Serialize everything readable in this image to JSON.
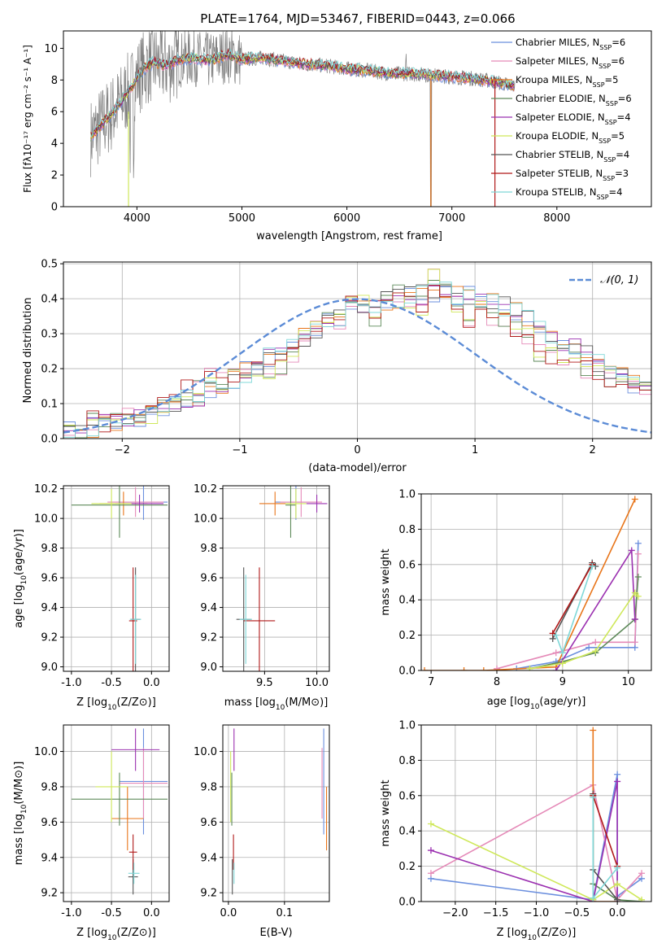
{
  "figure_title": "PLATE=1764, MJD=53467, FIBERID=0443, z=0.066",
  "colors": {
    "Chabrier MILES": "#6b8fde",
    "Salpeter MILES": "#e58ab8",
    "Kroupa MILES": "#e8751a",
    "Chabrier ELODIE": "#5e8a5a",
    "Salpeter ELODIE": "#9b30b0",
    "Kroupa ELODIE": "#cfe85a",
    "Chabrier STELIB": "#555555",
    "Salpeter STELIB": "#b01818",
    "Kroupa STELIB": "#7fd8d8",
    "data": "#808080",
    "gauss": "#5b8bd6"
  },
  "chart_data": [
    {
      "id": "spectrum",
      "type": "line",
      "title": "PLATE=1764, MJD=53467, FIBERID=0443, z=0.066",
      "xlabel": "wavelength [Angstrom, rest frame]",
      "ylabel": "Flux [fλ10⁻¹⁷ erg cm⁻² s⁻¹ A⁻¹]",
      "xlim": [
        3300,
        8900
      ],
      "ylim": [
        0,
        11.1
      ],
      "xticks": [
        4000,
        5000,
        6000,
        7000,
        8000
      ],
      "yticks": [
        0,
        2,
        4,
        6,
        8,
        10
      ],
      "grid": false,
      "legend_position": "right",
      "legend": [
        {
          "series": "Chabrier MILES",
          "pre": "Chabrier MILES, N",
          "sub": "SSP",
          "post": "=6"
        },
        {
          "series": "Salpeter MILES",
          "pre": "Salpeter MILES, N",
          "sub": "SSP",
          "post": "=6"
        },
        {
          "series": "Kroupa MILES",
          "pre": "Kroupa MILES, N",
          "sub": "SSP",
          "post": "=5"
        },
        {
          "series": "Chabrier ELODIE",
          "pre": "Chabrier ELODIE, N",
          "sub": "SSP",
          "post": "=6"
        },
        {
          "series": "Salpeter ELODIE",
          "pre": "Salpeter ELODIE, N",
          "sub": "SSP",
          "post": "=4"
        },
        {
          "series": "Kroupa ELODIE",
          "pre": "Kroupa ELODIE, N",
          "sub": "SSP",
          "post": "=5"
        },
        {
          "series": "Chabrier STELIB",
          "pre": "Chabrier STELIB, N",
          "sub": "SSP",
          "post": "=4"
        },
        {
          "series": "Salpeter STELIB",
          "pre": "Salpeter STELIB, N",
          "sub": "SSP",
          "post": "=3"
        },
        {
          "series": "Kroupa STELIB",
          "pre": "Kroupa STELIB, N",
          "sub": "SSP",
          "post": "=4"
        }
      ],
      "continuum": [
        [
          3550,
          4.3
        ],
        [
          3650,
          5.1
        ],
        [
          3750,
          5.8
        ],
        [
          3850,
          6.6
        ],
        [
          3950,
          7.6
        ],
        [
          4050,
          8.6
        ],
        [
          4150,
          9.1
        ],
        [
          4300,
          8.9
        ],
        [
          4400,
          9.3
        ],
        [
          4550,
          9.4
        ],
        [
          4700,
          9.2
        ],
        [
          4850,
          9.6
        ],
        [
          5000,
          9.3
        ],
        [
          5200,
          9.4
        ],
        [
          5400,
          9.2
        ],
        [
          5600,
          9.0
        ],
        [
          5800,
          8.9
        ],
        [
          6000,
          8.7
        ],
        [
          6200,
          8.6
        ],
        [
          6400,
          8.4
        ],
        [
          6600,
          8.4
        ],
        [
          6800,
          8.3
        ],
        [
          7000,
          8.2
        ],
        [
          7200,
          8.1
        ],
        [
          7400,
          7.9
        ],
        [
          7600,
          7.6
        ]
      ],
      "data_noise_amplitude": 1.4
    },
    {
      "id": "residuals",
      "type": "bar",
      "xlabel": "(data-model)/error",
      "ylabel": "Normed distribution",
      "xlim": [
        -2.5,
        2.5
      ],
      "ylim": [
        0,
        0.505
      ],
      "xticks": [
        -2,
        -1,
        0,
        1,
        2
      ],
      "yticks": [
        0.0,
        0.1,
        0.2,
        0.3,
        0.4,
        0.5
      ],
      "grid": true,
      "legend_position": "top-right",
      "gauss_label": "𝒩(0, 1)",
      "bin_width": 0.1,
      "bin_start": -2.5,
      "base": [
        0.02,
        0.025,
        0.03,
        0.04,
        0.05,
        0.05,
        0.06,
        0.07,
        0.08,
        0.1,
        0.11,
        0.12,
        0.14,
        0.15,
        0.17,
        0.19,
        0.21,
        0.23,
        0.24,
        0.26,
        0.29,
        0.31,
        0.33,
        0.35,
        0.37,
        0.38,
        0.39,
        0.39,
        0.4,
        0.41,
        0.41,
        0.42,
        0.42,
        0.41,
        0.41,
        0.4,
        0.4,
        0.38,
        0.36,
        0.35,
        0.33,
        0.3,
        0.28,
        0.26,
        0.24,
        0.22,
        0.2,
        0.18,
        0.16,
        0.15,
        0.13,
        0.11,
        0.1,
        0.09,
        0.08,
        0.07,
        0.06,
        0.05,
        0.04,
        0.035,
        0.03,
        0.03,
        0.025,
        0.02,
        0.02,
        0.015,
        0.015,
        0.015,
        0.01,
        0.01
      ],
      "base_alt": [
        0.02,
        0.03,
        0.05,
        0.04,
        0.05,
        0.06,
        0.06,
        0.07,
        0.09,
        0.1,
        0.14,
        0.15,
        0.18,
        0.16,
        0.19,
        0.2,
        0.19,
        0.19,
        0.21,
        0.24,
        0.3,
        0.32,
        0.34,
        0.34,
        0.38,
        0.38,
        0.35,
        0.38,
        0.41,
        0.4,
        0.38,
        0.46,
        0.42,
        0.38,
        0.34,
        0.37,
        0.34,
        0.33,
        0.32,
        0.3,
        0.25,
        0.23,
        0.24,
        0.22,
        0.2,
        0.19,
        0.17,
        0.16,
        0.15,
        0.13,
        0.11,
        0.1,
        0.09,
        0.07,
        0.06,
        0.05,
        0.05,
        0.04,
        0.04,
        0.03,
        0.03,
        0.04,
        0.03,
        0.03,
        0.02,
        0.03,
        0.02,
        0.02,
        0.02,
        0.03
      ]
    },
    {
      "id": "age_vs_Z",
      "type": "scatter",
      "xlabel_pre": "Z [log",
      "xlabel_sub": "10",
      "xlabel_post": "(Z/Z⊙)]",
      "ylabel_pre": "age  [log",
      "ylabel_sub": "10",
      "ylabel_post": "(age/yr)]",
      "xlim": [
        -1.1,
        0.22
      ],
      "ylim": [
        8.97,
        10.22
      ],
      "xticks": [
        -1.0,
        -0.5,
        0.0
      ],
      "yticks": [
        9.0,
        9.2,
        9.4,
        9.6,
        9.8,
        10.0,
        10.2
      ],
      "grid": true,
      "points": [
        {
          "series": "Chabrier MILES",
          "x": -0.1,
          "y": 10.11,
          "xerr": 0.3,
          "yerr": 0.12
        },
        {
          "series": "Salpeter MILES",
          "x": -0.2,
          "y": 10.11,
          "xerr": 0.35,
          "yerr": 0.1
        },
        {
          "series": "Kroupa MILES",
          "x": -0.35,
          "y": 10.1,
          "xerr": 0.3,
          "yerr": 0.08
        },
        {
          "series": "Chabrier ELODIE",
          "x": -0.4,
          "y": 10.09,
          "xerr": 0.6,
          "yerr": 0.22
        },
        {
          "series": "Salpeter ELODIE",
          "x": -0.15,
          "y": 10.1,
          "xerr": 0.3,
          "yerr": 0.06
        },
        {
          "series": "Kroupa ELODIE",
          "x": -0.5,
          "y": 10.1,
          "xerr": 0.25,
          "yerr": 0.1
        },
        {
          "series": "Chabrier STELIB",
          "x": -0.2,
          "y": 9.32,
          "xerr": 0.06,
          "yerr": 0.35
        },
        {
          "series": "Salpeter STELIB",
          "x": -0.23,
          "y": 9.31,
          "xerr": 0.05,
          "yerr": 0.36
        },
        {
          "series": "Kroupa STELIB",
          "x": -0.2,
          "y": 9.32,
          "xerr": 0.07,
          "yerr": 0.3
        }
      ]
    },
    {
      "id": "age_vs_mass",
      "type": "scatter",
      "xlabel_pre": "mass [log",
      "xlabel_sub": "10",
      "xlabel_post": "(M/M⊙)]",
      "ylabel_pre": "",
      "ylabel_sub": "",
      "ylabel_post": "",
      "xlim": [
        9.1,
        10.12
      ],
      "ylim": [
        8.97,
        10.22
      ],
      "xticks": [
        9.5,
        10.0
      ],
      "yticks": [
        9.0,
        9.2,
        9.4,
        9.6,
        9.8,
        10.0,
        10.2
      ],
      "grid": true,
      "points": [
        {
          "series": "Chabrier MILES",
          "x": 9.8,
          "y": 10.11,
          "xerr": 0.2,
          "yerr": 0.12
        },
        {
          "series": "Salpeter MILES",
          "x": 9.85,
          "y": 10.11,
          "xerr": 0.2,
          "yerr": 0.1
        },
        {
          "series": "Kroupa MILES",
          "x": 9.6,
          "y": 10.1,
          "xerr": 0.15,
          "yerr": 0.08
        },
        {
          "series": "Chabrier ELODIE",
          "x": 9.75,
          "y": 10.09,
          "xerr": 0.05,
          "yerr": 0.22
        },
        {
          "series": "Salpeter ELODIE",
          "x": 10.0,
          "y": 10.1,
          "xerr": 0.1,
          "yerr": 0.06
        },
        {
          "series": "Kroupa ELODIE",
          "x": 9.8,
          "y": 10.1,
          "xerr": 0.1,
          "yerr": 0.1
        },
        {
          "series": "Chabrier STELIB",
          "x": 9.3,
          "y": 9.32,
          "xerr": 0.07,
          "yerr": 0.35
        },
        {
          "series": "Salpeter STELIB",
          "x": 9.45,
          "y": 9.31,
          "xerr": 0.15,
          "yerr": 0.36
        },
        {
          "series": "Kroupa STELIB",
          "x": 9.32,
          "y": 9.32,
          "xerr": 0.06,
          "yerr": 0.3
        }
      ]
    },
    {
      "id": "mass_weight_vs_age",
      "type": "line",
      "xlabel_pre": "age  [log",
      "xlabel_sub": "10",
      "xlabel_post": "(age/yr)]",
      "ylabel": "mass weight",
      "xlim": [
        6.85,
        10.35
      ],
      "ylim": [
        0,
        1.0
      ],
      "xticks": [
        7,
        8,
        9,
        10
      ],
      "yticks": [
        0.0,
        0.2,
        0.4,
        0.6,
        0.8,
        1.0
      ],
      "grid": true,
      "series": [
        {
          "name": "Chabrier MILES",
          "x": [
            8.3,
            8.9,
            9.4,
            10.1,
            10.15
          ],
          "y": [
            0.01,
            0.05,
            0.13,
            0.13,
            0.72
          ]
        },
        {
          "name": "Salpeter MILES",
          "x": [
            8.0,
            8.9,
            9.5,
            10.1,
            10.15
          ],
          "y": [
            0.01,
            0.1,
            0.16,
            0.16,
            0.66
          ]
        },
        {
          "name": "Kroupa MILES",
          "x": [
            6.9,
            7.5,
            7.8,
            8.9,
            10.1
          ],
          "y": [
            0.0,
            0.0,
            0.0,
            0.02,
            0.97
          ]
        },
        {
          "name": "Chabrier ELODIE",
          "x": [
            8.5,
            9.0,
            9.5,
            10.1,
            10.15
          ],
          "y": [
            0.01,
            0.05,
            0.1,
            0.29,
            0.53
          ]
        },
        {
          "name": "Salpeter ELODIE",
          "x": [
            8.9,
            10.05,
            10.1
          ],
          "y": [
            0.0,
            0.68,
            0.29
          ]
        },
        {
          "name": "Kroupa ELODIE",
          "x": [
            8.5,
            9.0,
            9.5,
            10.1,
            10.15
          ],
          "y": [
            0.01,
            0.04,
            0.11,
            0.44,
            0.42
          ]
        },
        {
          "name": "Chabrier STELIB",
          "x": [
            8.85,
            9.45,
            9.5
          ],
          "y": [
            0.18,
            0.61,
            0.59
          ]
        },
        {
          "name": "Salpeter STELIB",
          "x": [
            8.85,
            9.45
          ],
          "y": [
            0.21,
            0.6
          ]
        },
        {
          "name": "Kroupa STELIB",
          "x": [
            8.9,
            9.0,
            9.45
          ],
          "y": [
            0.2,
            0.1,
            0.59
          ]
        }
      ]
    },
    {
      "id": "mass_vs_Z",
      "type": "scatter",
      "xlabel_pre": "Z [log",
      "xlabel_sub": "10",
      "xlabel_post": "(Z/Z⊙)]",
      "ylabel_pre": "mass [log",
      "ylabel_sub": "10",
      "ylabel_post": "(M/M⊙)]",
      "xlim": [
        -1.1,
        0.22
      ],
      "ylim": [
        9.15,
        10.15
      ],
      "xticks": [
        -1.0,
        -0.5,
        0.0
      ],
      "yticks": [
        9.2,
        9.4,
        9.6,
        9.8,
        10.0
      ],
      "grid": true,
      "points": [
        {
          "series": "Chabrier MILES",
          "x": -0.1,
          "y": 9.83,
          "xerr": 0.3,
          "yerr": 0.3
        },
        {
          "series": "Salpeter MILES",
          "x": -0.1,
          "y": 9.82,
          "xerr": 0.3,
          "yerr": 0.2
        },
        {
          "series": "Kroupa MILES",
          "x": -0.3,
          "y": 9.62,
          "xerr": 0.2,
          "yerr": 0.18
        },
        {
          "series": "Chabrier ELODIE",
          "x": -0.4,
          "y": 9.73,
          "xerr": 0.6,
          "yerr": 0.15
        },
        {
          "series": "Salpeter ELODIE",
          "x": -0.2,
          "y": 10.01,
          "xerr": 0.3,
          "yerr": 0.12
        },
        {
          "series": "Kroupa ELODIE",
          "x": -0.5,
          "y": 9.8,
          "xerr": 0.2,
          "yerr": 0.2
        },
        {
          "series": "Chabrier STELIB",
          "x": -0.23,
          "y": 9.29,
          "xerr": 0.06,
          "yerr": 0.1
        },
        {
          "series": "Salpeter STELIB",
          "x": -0.23,
          "y": 9.43,
          "xerr": 0.05,
          "yerr": 0.1
        },
        {
          "series": "Kroupa STELIB",
          "x": -0.22,
          "y": 9.31,
          "xerr": 0.07,
          "yerr": 0.06
        }
      ]
    },
    {
      "id": "ebv",
      "type": "scatter",
      "xlabel": "E(B-V)",
      "xlim": [
        -0.01,
        0.18
      ],
      "ylim": [
        9.15,
        10.15
      ],
      "xticks": [
        0.0,
        0.1
      ],
      "yticks": [
        9.2,
        9.4,
        9.6,
        9.8,
        10.0
      ],
      "grid": true,
      "points": [
        {
          "series": "Chabrier MILES",
          "x": 0.17,
          "y": 9.83,
          "xerr": 0,
          "yerr": 0.3
        },
        {
          "series": "Salpeter MILES",
          "x": 0.167,
          "y": 9.82,
          "xerr": 0,
          "yerr": 0.2
        },
        {
          "series": "Kroupa MILES",
          "x": 0.175,
          "y": 9.62,
          "xerr": 0,
          "yerr": 0.18
        },
        {
          "series": "Chabrier ELODIE",
          "x": 0.006,
          "y": 9.73,
          "xerr": 0,
          "yerr": 0.15
        },
        {
          "series": "Salpeter ELODIE",
          "x": 0.01,
          "y": 10.01,
          "xerr": 0,
          "yerr": 0.12
        },
        {
          "series": "Kroupa ELODIE",
          "x": 0.004,
          "y": 9.8,
          "xerr": 0,
          "yerr": 0.2
        },
        {
          "series": "Chabrier STELIB",
          "x": 0.007,
          "y": 9.29,
          "xerr": 0,
          "yerr": 0.1
        },
        {
          "series": "Salpeter STELIB",
          "x": 0.009,
          "y": 9.43,
          "xerr": 0,
          "yerr": 0.1
        },
        {
          "series": "Kroupa STELIB",
          "x": 0.01,
          "y": 9.31,
          "xerr": 0,
          "yerr": 0.06
        }
      ]
    },
    {
      "id": "mass_weight_vs_Z",
      "type": "line",
      "xlabel_pre": "Z [log",
      "xlabel_sub": "10",
      "xlabel_post": "(Z/Z⊙)]",
      "ylabel": "mass weight",
      "xlim": [
        -2.42,
        0.42
      ],
      "ylim": [
        0,
        1.0
      ],
      "xticks": [
        -2.0,
        -1.5,
        -1.0,
        -0.5,
        0.0
      ],
      "yticks": [
        0.0,
        0.2,
        0.4,
        0.6,
        0.8,
        1.0
      ],
      "grid": true,
      "series": [
        {
          "name": "Chabrier MILES",
          "x": [
            -2.3,
            -0.3,
            0.0,
            0.0,
            0.3
          ],
          "y": [
            0.13,
            0.01,
            0.72,
            0.03,
            0.13
          ]
        },
        {
          "name": "Salpeter MILES",
          "x": [
            -2.3,
            -0.3,
            0.0,
            0.3
          ],
          "y": [
            0.16,
            0.66,
            0.01,
            0.16
          ]
        },
        {
          "name": "Kroupa MILES",
          "x": [
            -0.3,
            -0.3,
            0.0
          ],
          "y": [
            0.97,
            0.0,
            0.0
          ]
        },
        {
          "name": "Chabrier ELODIE",
          "x": [
            -0.3,
            -0.3,
            0.0,
            0.3
          ],
          "y": [
            0.6,
            0.1,
            0.01,
            0.0
          ]
        },
        {
          "name": "Salpeter ELODIE",
          "x": [
            -2.3,
            -0.3,
            0.0,
            0.0
          ],
          "y": [
            0.29,
            0.0,
            0.68,
            0.0
          ]
        },
        {
          "name": "Kroupa ELODIE",
          "x": [
            -2.3,
            -0.3,
            0.0,
            0.3
          ],
          "y": [
            0.44,
            0.01,
            0.1,
            0.01
          ]
        },
        {
          "name": "Chabrier STELIB",
          "x": [
            -0.3,
            -0.3,
            0.0
          ],
          "y": [
            0.61,
            0.18,
            0.01
          ]
        },
        {
          "name": "Salpeter STELIB",
          "x": [
            -0.3,
            0.0
          ],
          "y": [
            0.6,
            0.2
          ]
        },
        {
          "name": "Kroupa STELIB",
          "x": [
            -0.3,
            -0.3,
            0.0
          ],
          "y": [
            0.59,
            0.02,
            0.19
          ]
        }
      ]
    }
  ]
}
